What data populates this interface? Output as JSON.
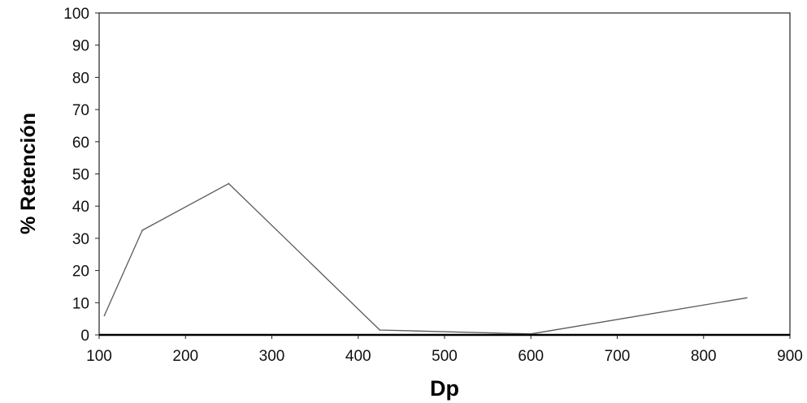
{
  "chart_data": {
    "type": "line",
    "title": "",
    "xlabel": "Dp",
    "ylabel": "% Retención",
    "xlim": [
      100,
      900
    ],
    "ylim": [
      0,
      100
    ],
    "x_ticks": [
      100,
      200,
      300,
      400,
      500,
      600,
      700,
      800,
      900
    ],
    "y_ticks": [
      0,
      10,
      20,
      30,
      40,
      50,
      60,
      70,
      80,
      90,
      100
    ],
    "grid": false,
    "series": [
      {
        "points": [
          {
            "x": 106,
            "y": 6
          },
          {
            "x": 150,
            "y": 32.5
          },
          {
            "x": 250,
            "y": 47
          },
          {
            "x": 425,
            "y": 1.5
          },
          {
            "x": 600,
            "y": 0.3
          },
          {
            "x": 850,
            "y": 11.5
          }
        ]
      }
    ],
    "colors": {
      "line": "#5a5a5a",
      "axis": "#000000"
    }
  }
}
